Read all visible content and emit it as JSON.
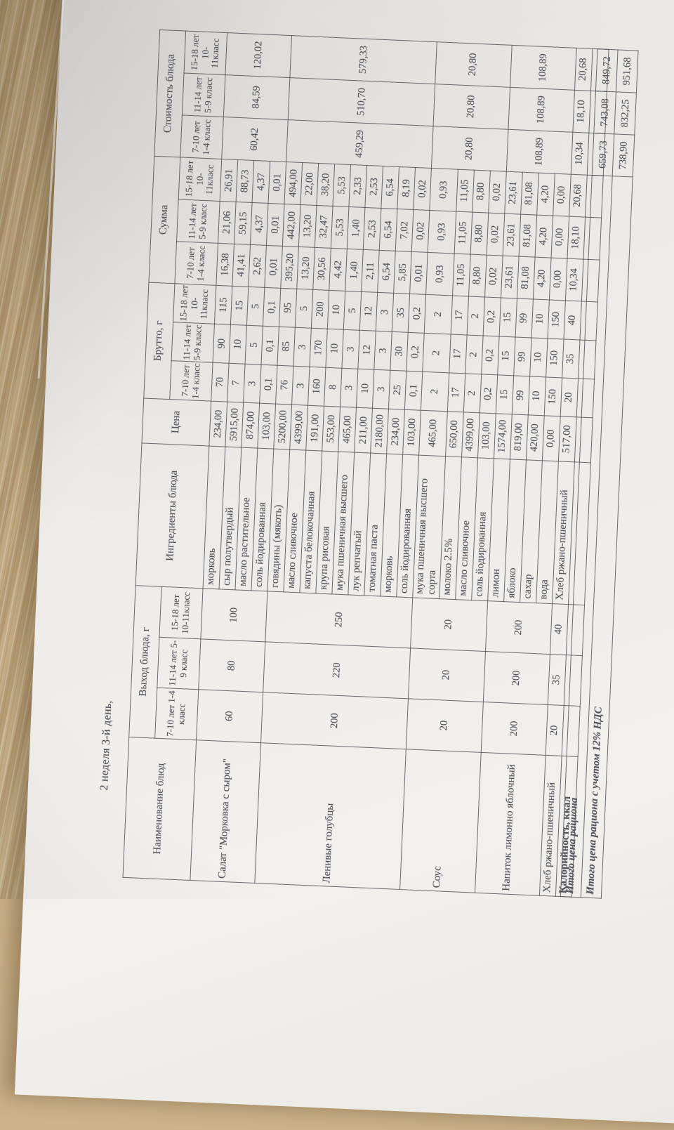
{
  "colors": {
    "wood": "#cdb38a",
    "paper": "#eceae7",
    "ink": "#53535c"
  },
  "title": "2 неделя 3-й день,",
  "table": {
    "headers": {
      "name": "Наименование блюд",
      "yield_group": "Выход блюда, г",
      "ingredients": "Ингредиенты блюда",
      "price": "Цена",
      "brutto_group": "Брутто, г",
      "sum_group": "Сумма",
      "cost_group": "Стоимость блюда",
      "classes": [
        "7-10 лет 1-4 класс",
        "11-14 лет 5-9 класс",
        "15-18 лет 10-11класс"
      ]
    },
    "dishes": [
      {
        "name": "Салат \"Морковка с сыром\"",
        "yield": [
          "60",
          "80",
          "100"
        ],
        "cost": [
          "60,42",
          "84,59",
          "120,02"
        ],
        "ingredients": [
          {
            "name": "морковь",
            "price": "234,00",
            "brutto": [
              "70",
              "90",
              "115"
            ],
            "sum": [
              "16,38",
              "21,06",
              "26,91"
            ]
          },
          {
            "name": "сыр полутвердый",
            "price": "5915,00",
            "brutto": [
              "7",
              "10",
              "15"
            ],
            "sum": [
              "41,41",
              "59,15",
              "88,73"
            ]
          },
          {
            "name": "масло растительное",
            "price": "874,00",
            "brutto": [
              "3",
              "5",
              "5"
            ],
            "sum": [
              "2,62",
              "4,37",
              "4,37"
            ]
          },
          {
            "name": "соль йодированная",
            "price": "103,00",
            "brutto": [
              "0,1",
              "0,1",
              "0,1"
            ],
            "sum": [
              "0,01",
              "0,01",
              "0,01"
            ]
          }
        ]
      },
      {
        "name": "Ленивые голубцы",
        "yield": [
          "200",
          "220",
          "250"
        ],
        "cost": [
          "459,29",
          "510,70",
          "579,33"
        ],
        "ingredients": [
          {
            "name": "говядины (мякоть)",
            "price": "5200,00",
            "brutto": [
              "76",
              "85",
              "95"
            ],
            "sum": [
              "395,20",
              "442,00",
              "494,00"
            ]
          },
          {
            "name": "масло сливочное",
            "price": "4399,00",
            "brutto": [
              "3",
              "3",
              "5"
            ],
            "sum": [
              "13,20",
              "13,20",
              "22,00"
            ]
          },
          {
            "name": "капуста белокочанная",
            "price": "191,00",
            "brutto": [
              "160",
              "170",
              "200"
            ],
            "sum": [
              "30,56",
              "32,47",
              "38,20"
            ]
          },
          {
            "name": "крупа рисовая",
            "price": "553,00",
            "brutto": [
              "8",
              "10",
              "10"
            ],
            "sum": [
              "4,42",
              "5,53",
              "5,53"
            ]
          },
          {
            "name": "мука пшеничная высшего",
            "price": "465,00",
            "brutto": [
              "3",
              "3",
              "5"
            ],
            "sum": [
              "1,40",
              "1,40",
              "2,33"
            ]
          },
          {
            "name": "лук репчатый",
            "price": "211,00",
            "brutto": [
              "10",
              "12",
              "12"
            ],
            "sum": [
              "2,11",
              "2,53",
              "2,53"
            ]
          },
          {
            "name": "томатная паста",
            "price": "2180,00",
            "brutto": [
              "3",
              "3",
              "3"
            ],
            "sum": [
              "6,54",
              "6,54",
              "6,54"
            ]
          },
          {
            "name": "морковь",
            "price": "234,00",
            "brutto": [
              "25",
              "30",
              "35"
            ],
            "sum": [
              "5,85",
              "7,02",
              "8,19"
            ]
          },
          {
            "name": "соль йодированная",
            "price": "103,00",
            "brutto": [
              "0,1",
              "0,2",
              "0,2"
            ],
            "sum": [
              "0,01",
              "0,02",
              "0,02"
            ]
          }
        ]
      },
      {
        "name": "Соус",
        "yield": [
          "20",
          "20",
          "20"
        ],
        "cost": [
          "20,80",
          "20,80",
          "20,80"
        ],
        "ingredients": [
          {
            "name": "мука пшеничная высшего сорта",
            "price": "465,00",
            "brutto": [
              "2",
              "2",
              "2"
            ],
            "sum": [
              "0,93",
              "0,93",
              "0,93"
            ]
          },
          {
            "name": "молоко 2.5%",
            "price": "650,00",
            "brutto": [
              "17",
              "17",
              "17"
            ],
            "sum": [
              "11,05",
              "11,05",
              "11,05"
            ]
          },
          {
            "name": "масло сливочное",
            "price": "4399,00",
            "brutto": [
              "2",
              "2",
              "2"
            ],
            "sum": [
              "8,80",
              "8,80",
              "8,80"
            ]
          },
          {
            "name": "соль йодированная",
            "price": "103,00",
            "brutto": [
              "0,2",
              "0,2",
              "0,2"
            ],
            "sum": [
              "0,02",
              "0,02",
              "0,02"
            ]
          }
        ]
      },
      {
        "name": "Напиток лимонно яблочный",
        "yield": [
          "200",
          "200",
          "200"
        ],
        "cost": [
          "108,89",
          "108,89",
          "108,89"
        ],
        "ingredients": [
          {
            "name": "лимон",
            "price": "1574,00",
            "brutto": [
              "15",
              "15",
              "15"
            ],
            "sum": [
              "23,61",
              "23,61",
              "23,61"
            ]
          },
          {
            "name": "яблоко",
            "price": "819,00",
            "brutto": [
              "99",
              "99",
              "99"
            ],
            "sum": [
              "81,08",
              "81,08",
              "81,08"
            ]
          },
          {
            "name": "сахар",
            "price": "420,00",
            "brutto": [
              "10",
              "10",
              "10"
            ],
            "sum": [
              "4,20",
              "4,20",
              "4,20"
            ]
          },
          {
            "name": "вода",
            "price": "0,00",
            "brutto": [
              "150",
              "150",
              "150"
            ],
            "sum": [
              "0,00",
              "0,00",
              "0,00"
            ]
          }
        ]
      },
      {
        "name": "Хлеб ржано-пшеничный",
        "yield": [
          "20",
          "35",
          "40"
        ],
        "cost": [
          "10,34",
          "18,10",
          "20,68"
        ],
        "ingredients": [
          {
            "name": "Хлеб ржано-пшеничный",
            "price": "517,00",
            "brutto": [
              "20",
              "35",
              "40"
            ],
            "sum": [
              "10,34",
              "18,10",
              "20,68"
            ]
          }
        ]
      }
    ],
    "calories_row": {
      "label": "Калорийность, ккал"
    }
  },
  "totals": [
    {
      "label": "Итого цена рациона",
      "values": [
        "659,73",
        "743,08",
        "849,72"
      ]
    },
    {
      "label": "Итого цена рациона с учетом 12% НДС",
      "values": [
        "738,90",
        "832,25",
        "951,68"
      ]
    }
  ]
}
